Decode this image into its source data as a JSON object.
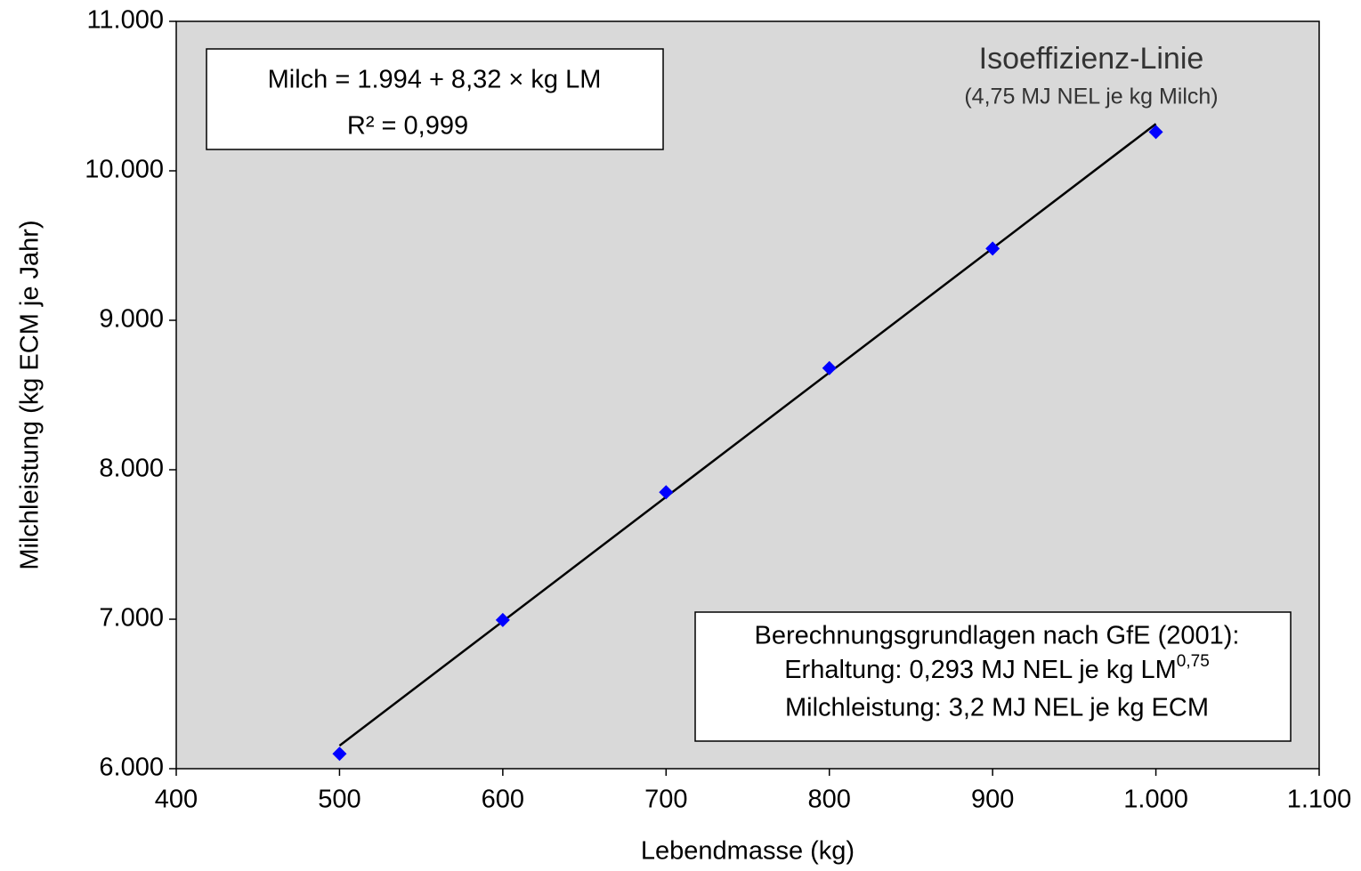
{
  "chart_data": {
    "type": "scatter",
    "x_label": "Lebendmasse (kg)",
    "y_label": "Milchleistung (kg ECM je Jahr)",
    "x": [
      500,
      600,
      700,
      800,
      900,
      1000
    ],
    "values": [
      6100,
      6995,
      7850,
      8680,
      9480,
      10260
    ],
    "color": "#0000ff",
    "trendline": {
      "x": [
        500,
        1000
      ],
      "values": [
        6154,
        10314
      ],
      "color": "#000000"
    },
    "plot_background": "#d9d9d9",
    "xlim": [
      400,
      1100
    ],
    "xticks": [
      400,
      500,
      600,
      700,
      800,
      900,
      {
        "value": 1000,
        "label": "1.000"
      },
      {
        "value": 1100,
        "label": "1.100"
      }
    ],
    "ylim": [
      6000,
      11000
    ],
    "yticks": [
      {
        "value": 6000,
        "label": "6.000"
      },
      {
        "value": 7000,
        "label": "7.000"
      },
      {
        "value": 8000,
        "label": "8.000"
      },
      {
        "value": 9000,
        "label": "9.000"
      },
      {
        "value": 10000,
        "label": "10.000"
      },
      {
        "value": 11000,
        "label": "11.000"
      }
    ],
    "grid": false,
    "annotations": {
      "equation": "Milch = 1.994 + 8,32 × kg LM",
      "r_squared": "R² = 0,999",
      "line_title": "Isoeffizienz-Linie",
      "line_subtitle": "(4,75 MJ NEL je kg Milch)",
      "basis_title": "Berechnungsgrundlagen nach GfE (2001):",
      "basis_maintenance": "Erhaltung: 0,293 MJ NEL je kg LM",
      "basis_exponent": "0,75",
      "basis_milk": "Milchleistung: 3,2 MJ NEL je kg ECM"
    }
  }
}
